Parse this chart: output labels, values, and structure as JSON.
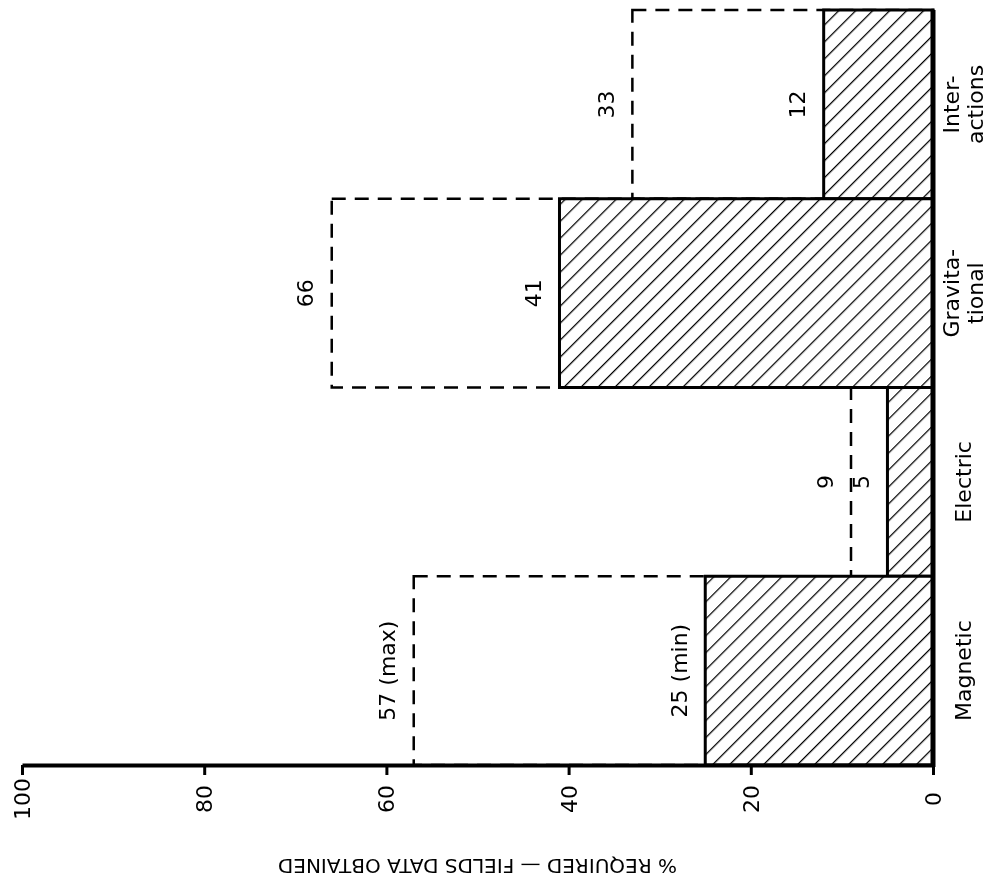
{
  "chart_data": {
    "type": "bar",
    "orientation": "horizontal",
    "xlabel": "% REQUIRED — FIELDS DATA OBTAINED",
    "categories": [
      "Inter-\nactions",
      "Gravita-\ntional",
      "Electric",
      "Magnetic"
    ],
    "series": [
      {
        "color": "#000000",
        "line_style": "dashed",
        "values": [
          33,
          66,
          9,
          57
        ],
        "value_labels": [
          "33",
          "66",
          "9",
          "57 (max)"
        ]
      },
      {
        "color": "#000000",
        "line_style": "solid",
        "values": [
          12,
          41,
          5,
          25
        ],
        "value_labels": [
          "12",
          "41",
          "5",
          "25 (min)"
        ]
      }
    ],
    "xlim": [
      100,
      0
    ],
    "xticks": [
      100,
      80,
      60,
      40,
      20,
      0
    ],
    "grid": false
  }
}
